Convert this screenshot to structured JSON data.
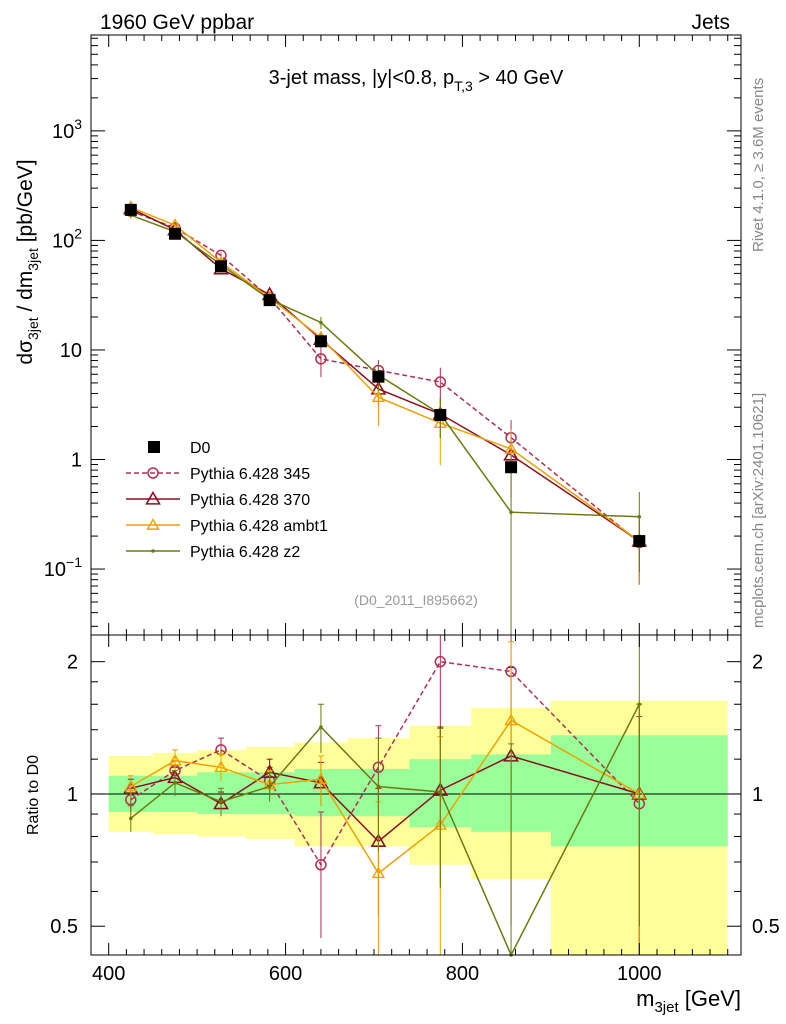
{
  "header": {
    "left": "1960 GeV ppbar",
    "right": "Jets"
  },
  "side_labels": {
    "rivet": "Rivet 4.1.0, ≥ 3.6M events",
    "mcplots": "mcplots.cern.ch [arXiv:2401.10621]"
  },
  "chart_data": {
    "type": "line",
    "title_parts": {
      "main": "3-jet mass, |y|<0.8, p",
      "sub": "T,3",
      "tail": " > 40 GeV"
    },
    "analysis_tag": "(D0_2011_I895662)",
    "xlabel": {
      "main": "m",
      "sub": "3jet",
      "tail": " [GeV]"
    },
    "ylabel_top": {
      "a": "dσ",
      "a_sub": "3jet",
      "b": " / dm",
      "b_sub": "3jet",
      "c": " [pb/GeV]"
    },
    "ylabel_ratio": "Ratio to D0",
    "xlim": [
      380,
      1115
    ],
    "ylim_top": [
      0.025,
      7500
    ],
    "ylim_ratio": [
      0.43,
      2.3
    ],
    "x_ticks": [
      400,
      600,
      800,
      1000
    ],
    "x_tick_labels": [
      "400",
      "600",
      "800",
      "1000"
    ],
    "y_ticks_top": [
      0.1,
      1,
      10,
      100,
      1000
    ],
    "y_tick_labels_top": [
      {
        "base": "10",
        "exp": "−1"
      },
      {
        "base": "1",
        "exp": ""
      },
      {
        "base": "10",
        "exp": ""
      },
      {
        "base": "10",
        "exp": "2"
      },
      {
        "base": "10",
        "exp": "3"
      }
    ],
    "y_ticks_ratio": [
      0.5,
      1,
      2
    ],
    "y_tick_labels_ratio": [
      "0.5",
      "1",
      "2"
    ],
    "bin_edges": [
      400,
      450,
      500,
      555,
      610,
      670,
      740,
      810,
      900,
      1100
    ],
    "x": [
      425,
      475,
      527,
      582,
      640,
      705,
      775,
      855,
      1000
    ],
    "data": {
      "name": "D0",
      "color": "#000000",
      "y": [
        190,
        115,
        58,
        28.5,
        12,
        5.7,
        2.55,
        0.85,
        0.18
      ],
      "ratio_band_inner": [
        [
          0.91,
          1.1
        ],
        [
          0.91,
          1.1
        ],
        [
          0.9,
          1.12
        ],
        [
          0.9,
          1.12
        ],
        [
          0.89,
          1.14
        ],
        [
          0.89,
          1.14
        ],
        [
          0.84,
          1.2
        ],
        [
          0.82,
          1.23
        ],
        [
          0.76,
          1.36
        ]
      ],
      "ratio_band_outer": [
        [
          0.82,
          1.22
        ],
        [
          0.81,
          1.24
        ],
        [
          0.8,
          1.26
        ],
        [
          0.79,
          1.28
        ],
        [
          0.76,
          1.31
        ],
        [
          0.76,
          1.34
        ],
        [
          0.69,
          1.43
        ],
        [
          0.64,
          1.57
        ],
        [
          0.4,
          1.63
        ]
      ]
    },
    "series": [
      {
        "name": "Pythia 6.428 345",
        "color": "#b03050",
        "marker": "circle",
        "dash": true,
        "y": [
          185,
          130,
          73,
          30,
          8.3,
          6.5,
          5.1,
          1.58,
          0.175
        ],
        "ratio": [
          0.97,
          1.13,
          1.26,
          1.07,
          0.69,
          1.15,
          2.0,
          1.9,
          0.95
        ],
        "ratio_err": [
          0.06,
          0.06,
          0.08,
          0.08,
          0.22,
          0.28,
          0.7,
          0.85,
          0.55
        ]
      },
      {
        "name": "Pythia 6.428 370",
        "color": "#8a1020",
        "marker": "triangle",
        "dash": false,
        "y": [
          195,
          125,
          55,
          32,
          12.5,
          4.4,
          2.6,
          1.1,
          0.18
        ],
        "ratio": [
          1.03,
          1.09,
          0.95,
          1.12,
          1.06,
          0.78,
          1.02,
          1.22,
          1.0
        ],
        "ratio_err": [
          0.05,
          0.06,
          0.06,
          0.08,
          0.12,
          0.25,
          0.4,
          0.72,
          0.6
        ]
      },
      {
        "name": "Pythia 6.428 ambt1",
        "color": "#f0a000",
        "marker": "triangle",
        "dash": false,
        "y": [
          200,
          138,
          63,
          30,
          13,
          3.7,
          2.15,
          1.25,
          0.18
        ],
        "ratio": [
          1.04,
          1.19,
          1.15,
          1.05,
          1.08,
          0.66,
          0.85,
          1.47,
          1.0
        ],
        "ratio_err": [
          0.06,
          0.07,
          0.08,
          0.08,
          0.14,
          0.3,
          0.5,
          0.75,
          0.6
        ]
      },
      {
        "name": "Pythia 6.428 z2",
        "color": "#6b7a10",
        "marker": "dot",
        "dash": false,
        "y": [
          170,
          120,
          60,
          29,
          17.8,
          5.9,
          2.6,
          0.33,
          0.3
        ],
        "ratio": [
          0.88,
          1.06,
          0.96,
          1.04,
          1.42,
          1.04,
          1.01,
          0.4,
          1.6
        ],
        "ratio_err": [
          0.06,
          0.07,
          0.07,
          0.08,
          0.18,
          0.3,
          0.4,
          0.9,
          1.1
        ]
      }
    ]
  }
}
